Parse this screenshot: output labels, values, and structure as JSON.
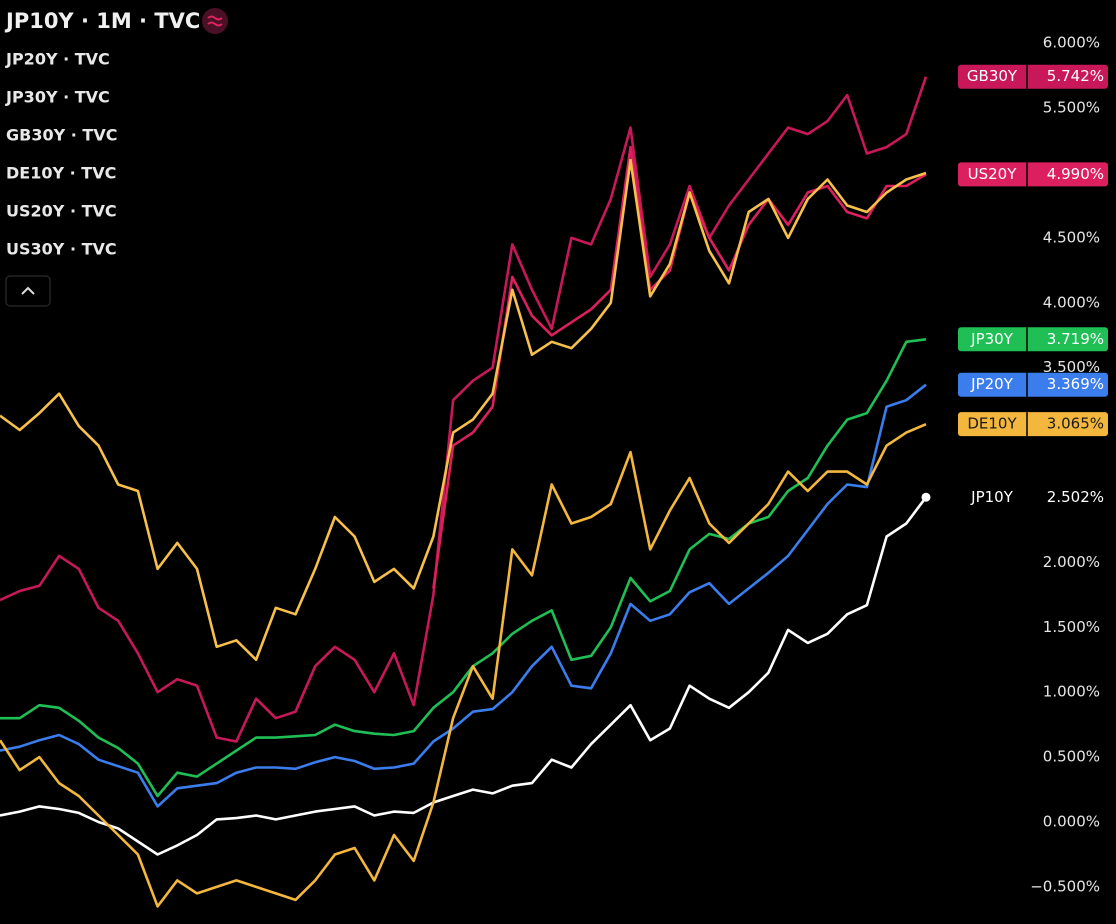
{
  "chart_data": {
    "type": "line",
    "title": "JP10Y · 1M · TVC",
    "ylim": [
      -0.755,
      6.333
    ],
    "yticks": [
      {
        "value": 6,
        "label": "6.000%"
      },
      {
        "value": 5.5,
        "label": "5.500%"
      },
      {
        "value": 4.5,
        "label": "4.500%"
      },
      {
        "value": 4,
        "label": "4.000%"
      },
      {
        "value": 3.5,
        "label": "3.500%"
      },
      {
        "value": 2,
        "label": "2.000%"
      },
      {
        "value": 1.5,
        "label": "1.500%"
      },
      {
        "value": 1,
        "label": "1.000%"
      },
      {
        "value": 0.5,
        "label": "0.500%"
      },
      {
        "value": 0,
        "label": "0.000%"
      },
      {
        "value": -0.5,
        "label": "−0.500%"
      }
    ],
    "series": [
      {
        "tag": "JP10Y",
        "color": "#ffffff",
        "values": [
          0.05,
          0.08,
          0.12,
          0.1,
          0.07,
          0.0,
          -0.05,
          -0.15,
          -0.25,
          -0.18,
          -0.1,
          0.02,
          0.03,
          0.05,
          0.02,
          0.05,
          0.08,
          0.1,
          0.12,
          0.05,
          0.08,
          0.07,
          0.15,
          0.2,
          0.25,
          0.22,
          0.28,
          0.3,
          0.48,
          0.42,
          0.6,
          0.75,
          0.9,
          0.63,
          0.72,
          1.05,
          0.95,
          0.88,
          1.0,
          1.15,
          1.48,
          1.38,
          1.45,
          1.6,
          1.67,
          2.2,
          2.3,
          2.502
        ],
        "value_labels": [
          null,
          null,
          null,
          null,
          null,
          null,
          null,
          null,
          null,
          null,
          null,
          null,
          null,
          null,
          null,
          null,
          null,
          null,
          null,
          null,
          null,
          null,
          null,
          null,
          null,
          null,
          null,
          null,
          null,
          null,
          null,
          null,
          null,
          null,
          null,
          null,
          null,
          null,
          null,
          null,
          null,
          null,
          null,
          null,
          null,
          null,
          null,
          "2.502%"
        ]
      },
      {
        "name": "JP20Y · TVC",
        "tag": "JP20Y",
        "color": "#3b7ded",
        "values": [
          0.55,
          0.58,
          0.63,
          0.67,
          0.6,
          0.48,
          0.43,
          0.38,
          0.12,
          0.26,
          0.28,
          0.3,
          0.38,
          0.42,
          0.42,
          0.41,
          0.46,
          0.5,
          0.47,
          0.41,
          0.42,
          0.45,
          0.62,
          0.72,
          0.85,
          0.87,
          1.0,
          1.2,
          1.35,
          1.05,
          1.03,
          1.3,
          1.68,
          1.55,
          1.6,
          1.77,
          1.84,
          1.68,
          1.8,
          1.92,
          2.05,
          2.25,
          2.45,
          2.6,
          2.58,
          3.2,
          3.25,
          3.369
        ],
        "value_labels": [
          null,
          null,
          null,
          null,
          null,
          null,
          null,
          null,
          null,
          null,
          null,
          null,
          null,
          null,
          null,
          null,
          null,
          null,
          null,
          null,
          null,
          null,
          null,
          null,
          null,
          null,
          null,
          null,
          null,
          null,
          null,
          null,
          null,
          null,
          null,
          null,
          null,
          null,
          null,
          null,
          null,
          null,
          null,
          null,
          null,
          null,
          null,
          "3.369%"
        ]
      },
      {
        "name": "JP30Y · TVC",
        "tag": "JP30Y",
        "color": "#1fbf55",
        "values": [
          0.8,
          0.8,
          0.9,
          0.88,
          0.78,
          0.65,
          0.57,
          0.45,
          0.2,
          0.38,
          0.35,
          0.45,
          0.55,
          0.65,
          0.65,
          0.66,
          0.67,
          0.75,
          0.7,
          0.68,
          0.67,
          0.7,
          0.88,
          1.0,
          1.2,
          1.3,
          1.45,
          1.55,
          1.63,
          1.25,
          1.28,
          1.5,
          1.88,
          1.7,
          1.78,
          2.1,
          2.22,
          2.18,
          2.3,
          2.35,
          2.55,
          2.65,
          2.9,
          3.1,
          3.15,
          3.4,
          3.7,
          3.719
        ],
        "value_labels": [
          null,
          null,
          null,
          null,
          null,
          null,
          null,
          null,
          null,
          null,
          null,
          null,
          null,
          null,
          null,
          null,
          null,
          null,
          null,
          null,
          null,
          null,
          null,
          null,
          null,
          null,
          null,
          null,
          null,
          null,
          null,
          null,
          null,
          null,
          null,
          null,
          null,
          null,
          null,
          null,
          null,
          null,
          null,
          null,
          null,
          null,
          null,
          "3.719%"
        ]
      },
      {
        "name": "GB30Y · TVC",
        "tag": "GB30Y",
        "color": "#c8185a",
        "values": [
          1.71,
          1.78,
          1.82,
          2.05,
          1.95,
          1.65,
          1.55,
          1.3,
          1.0,
          1.1,
          1.05,
          0.65,
          0.62,
          0.95,
          0.8,
          0.85,
          1.2,
          1.35,
          1.25,
          1.0,
          1.3,
          0.9,
          1.75,
          3.25,
          3.4,
          3.5,
          4.45,
          4.1,
          3.8,
          4.5,
          4.45,
          4.8,
          5.35,
          4.2,
          4.45,
          4.9,
          4.5,
          4.75,
          4.95,
          5.15,
          5.35,
          5.3,
          5.4,
          5.6,
          5.15,
          5.2,
          5.3,
          5.742
        ],
        "value_labels": [
          null,
          null,
          null,
          null,
          null,
          null,
          null,
          null,
          null,
          null,
          null,
          null,
          null,
          null,
          null,
          null,
          null,
          null,
          null,
          null,
          null,
          null,
          null,
          null,
          null,
          null,
          null,
          null,
          null,
          null,
          null,
          null,
          null,
          null,
          null,
          null,
          null,
          null,
          null,
          null,
          null,
          null,
          null,
          null,
          null,
          null,
          null,
          "5.742%"
        ]
      },
      {
        "name": "DE10Y · TVC",
        "tag": "DE10Y",
        "color": "#f4b73e",
        "values": [
          0.63,
          0.4,
          0.5,
          0.3,
          0.2,
          0.05,
          -0.1,
          -0.25,
          -0.65,
          -0.45,
          -0.55,
          -0.5,
          -0.45,
          -0.5,
          -0.55,
          -0.6,
          -0.45,
          -0.25,
          -0.2,
          -0.45,
          -0.1,
          -0.3,
          0.15,
          0.8,
          1.2,
          0.95,
          2.1,
          1.9,
          2.6,
          2.3,
          2.35,
          2.45,
          2.85,
          2.1,
          2.4,
          2.65,
          2.3,
          2.15,
          2.3,
          2.45,
          2.7,
          2.55,
          2.7,
          2.7,
          2.6,
          2.9,
          3.0,
          3.065
        ],
        "value_labels": [
          null,
          null,
          null,
          null,
          null,
          null,
          null,
          null,
          null,
          null,
          null,
          null,
          null,
          null,
          null,
          null,
          null,
          null,
          null,
          null,
          null,
          null,
          null,
          null,
          null,
          null,
          null,
          null,
          null,
          null,
          null,
          null,
          null,
          null,
          null,
          null,
          null,
          null,
          null,
          null,
          null,
          null,
          null,
          null,
          null,
          null,
          null,
          "3.065%"
        ]
      },
      {
        "name": "US20Y · TVC",
        "tag": "US20Y",
        "color": "#dc1f5e",
        "values": [
          null,
          null,
          null,
          null,
          null,
          null,
          null,
          null,
          null,
          null,
          null,
          null,
          null,
          null,
          null,
          null,
          null,
          null,
          null,
          null,
          null,
          null,
          1.8,
          2.9,
          3.0,
          3.2,
          4.2,
          3.9,
          3.75,
          3.85,
          3.95,
          4.1,
          5.2,
          4.1,
          4.25,
          4.85,
          4.5,
          4.25,
          4.6,
          4.8,
          4.6,
          4.85,
          4.9,
          4.7,
          4.65,
          4.9,
          4.9,
          4.99
        ],
        "value_labels": [
          null,
          null,
          null,
          null,
          null,
          null,
          null,
          null,
          null,
          null,
          null,
          null,
          null,
          null,
          null,
          null,
          null,
          null,
          null,
          null,
          null,
          null,
          null,
          null,
          null,
          null,
          null,
          null,
          null,
          null,
          null,
          null,
          null,
          null,
          null,
          null,
          null,
          null,
          null,
          null,
          null,
          null,
          null,
          null,
          null,
          null,
          null,
          "4.990%"
        ]
      },
      {
        "name": "US30Y · TVC",
        "color": "#f7c04a",
        "values": [
          3.13,
          3.02,
          3.15,
          3.3,
          3.05,
          2.9,
          2.6,
          2.55,
          1.95,
          2.15,
          1.95,
          1.35,
          1.4,
          1.25,
          1.65,
          1.6,
          1.95,
          2.35,
          2.2,
          1.85,
          1.95,
          1.8,
          2.2,
          3.0,
          3.1,
          3.3,
          4.1,
          3.6,
          3.7,
          3.65,
          3.8,
          4.0,
          5.1,
          4.05,
          4.3,
          4.85,
          4.4,
          4.15,
          4.7,
          4.8,
          4.5,
          4.8,
          4.95,
          4.75,
          4.7,
          4.85,
          4.95,
          5.0
        ]
      }
    ]
  }
}
